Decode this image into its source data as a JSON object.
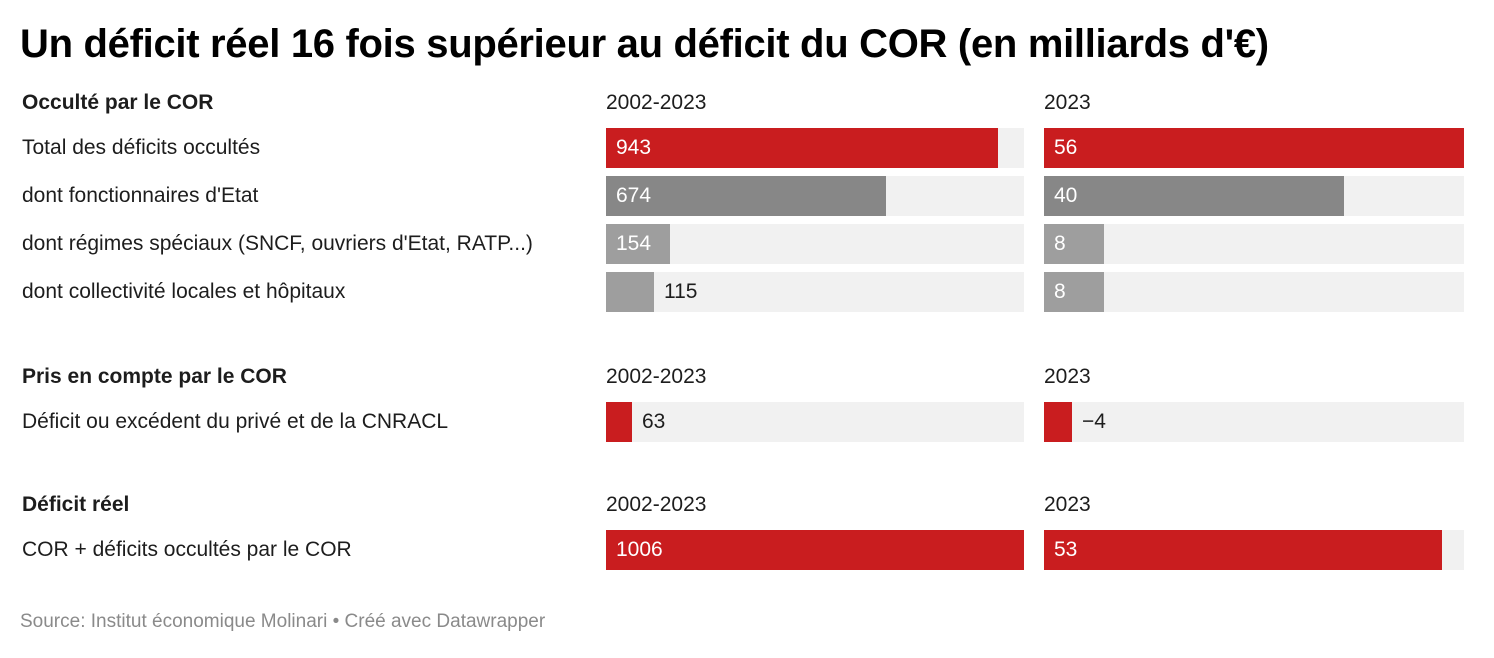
{
  "title": "Un déficit réel 16 fois supérieur au déficit du COR (en milliards d'€)",
  "source": "Source: Institut économique Molinari • Créé avec Datawrapper",
  "colors": {
    "red": "#c91d1f",
    "gray_dark": "#878787",
    "gray_light": "#9e9e9e",
    "track": "#f1f1f1"
  },
  "chart_data": {
    "type": "bar",
    "columns": [
      "2002-2023",
      "2023"
    ],
    "column_max": [
      1006,
      56
    ],
    "sections": [
      {
        "heading": "Occulté par le COR",
        "col1_header": "2002-2023",
        "col2_header": "2023",
        "rows": [
          {
            "label": "Total des déficits occultés",
            "values": [
              943,
              56
            ],
            "labels": [
              "943",
              "56"
            ],
            "color": "red"
          },
          {
            "label": "dont fonctionnaires d'Etat",
            "values": [
              674,
              40
            ],
            "labels": [
              "674",
              "40"
            ],
            "color": "gray_dark"
          },
          {
            "label": "dont régimes spéciaux (SNCF, ouvriers d'Etat, RATP...)",
            "values": [
              154,
              8
            ],
            "labels": [
              "154",
              "8"
            ],
            "color": "gray_light"
          },
          {
            "label": "dont collectivité locales et hôpitaux",
            "values": [
              115,
              8
            ],
            "labels": [
              "115",
              "8"
            ],
            "color": "gray_light"
          }
        ]
      },
      {
        "heading": "Pris en compte par le COR",
        "col1_header": "2002-2023",
        "col2_header": "2023",
        "rows": [
          {
            "label": "Déficit ou excédent du privé et de la CNRACL",
            "values": [
              63,
              -4
            ],
            "labels": [
              "63",
              "−4"
            ],
            "color": "red"
          }
        ]
      },
      {
        "heading": "Déficit réel",
        "col1_header": "2002-2023",
        "col2_header": "2023",
        "rows": [
          {
            "label": "COR + déficits occultés par le COR",
            "values": [
              1006,
              53
            ],
            "labels": [
              "1006",
              "53"
            ],
            "color": "red"
          }
        ]
      }
    ]
  }
}
